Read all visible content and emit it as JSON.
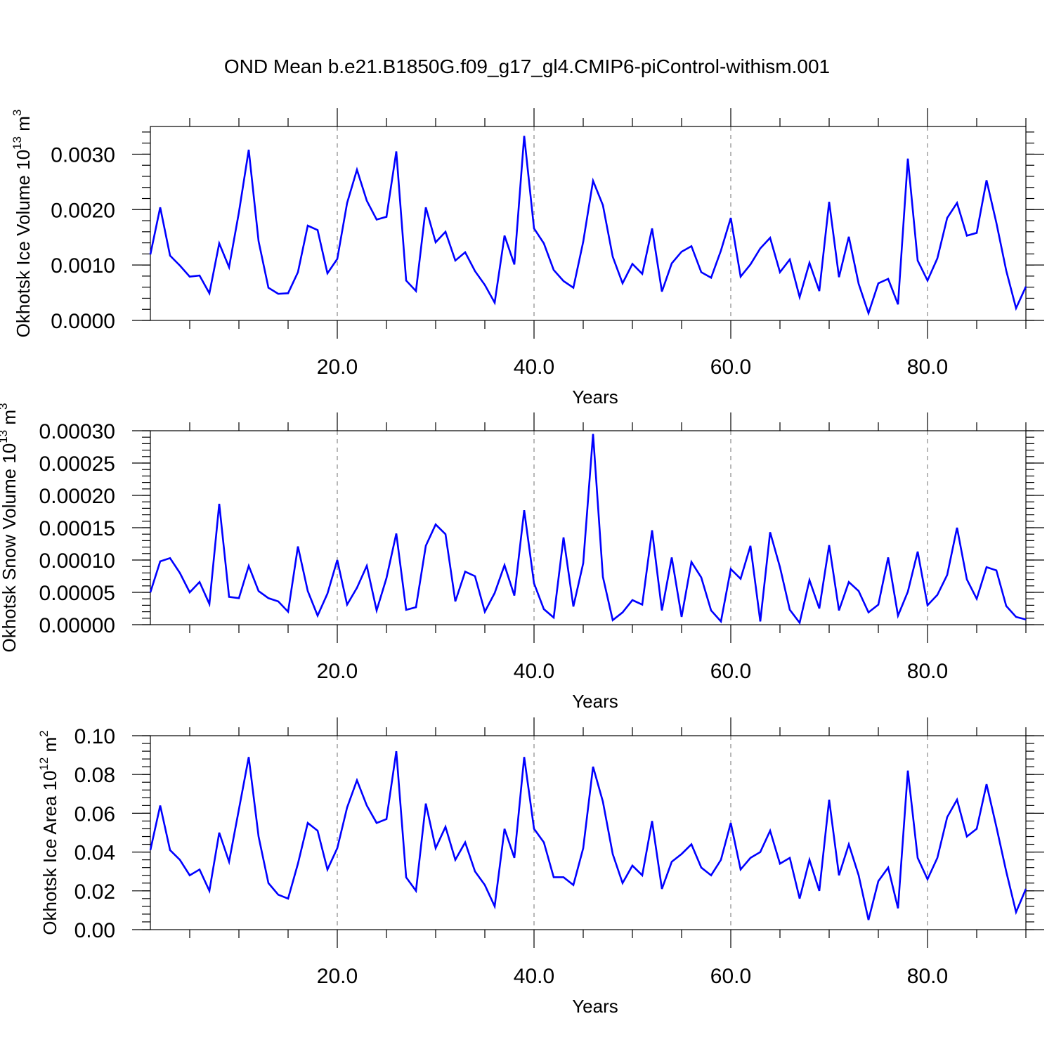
{
  "title": "OND Mean b.e21.B1850G.f09_g17_gl4.CMIP6-piControl-withism.001",
  "chart_data": [
    {
      "type": "line",
      "xlabel": "Years",
      "ylabel": "Okhotsk Ice Volume 10",
      "ylabel_exp": "13",
      "ylabel_unit": " m",
      "ylabel_unit_exp": "3",
      "xlim": [
        1,
        90
      ],
      "ylim": [
        0,
        0.0035
      ],
      "xticks": [
        20,
        40,
        60,
        80
      ],
      "xtick_labels": [
        "20.0",
        "40.0",
        "60.0",
        "80.0"
      ],
      "yticks": [
        0,
        0.001,
        0.002,
        0.003
      ],
      "ytick_labels": [
        "0.0000",
        "0.0010",
        "0.0020",
        "0.0030"
      ],
      "grid": "vertical-dashed",
      "line_color": "#0000ff",
      "x_start": 1,
      "values": [
        0.00119,
        0.00204,
        0.00117,
        0.00099,
        0.00079,
        0.00081,
        0.00049,
        0.00139,
        0.00096,
        0.00195,
        0.00308,
        0.00143,
        0.00059,
        0.00048,
        0.00049,
        0.00087,
        0.00171,
        0.00163,
        0.00085,
        0.00111,
        0.00212,
        0.00272,
        0.00216,
        0.00182,
        0.00187,
        0.00305,
        0.00072,
        0.00053,
        0.00204,
        0.00141,
        0.0016,
        0.00108,
        0.00123,
        0.00089,
        0.00064,
        0.00032,
        0.00153,
        0.00101,
        0.00333,
        0.00166,
        0.00139,
        0.00091,
        0.00071,
        0.00059,
        0.00142,
        0.00252,
        0.00208,
        0.00115,
        0.00067,
        0.00102,
        0.00084,
        0.00166,
        0.00052,
        0.00103,
        0.00124,
        0.00134,
        0.00087,
        0.00077,
        0.00126,
        0.00185,
        0.00079,
        0.00101,
        0.0013,
        0.00149,
        0.00087,
        0.0011,
        0.00042,
        0.00104,
        0.00053,
        0.00214,
        0.00078,
        0.00151,
        0.00066,
        0.00013,
        0.00067,
        0.00075,
        0.00029,
        0.00292,
        0.00108,
        0.00072,
        0.00112,
        0.00185,
        0.00212,
        0.00153,
        0.00158,
        0.00253,
        0.00176,
        0.0009,
        0.00022,
        0.00061
      ]
    },
    {
      "type": "line",
      "xlabel": "Years",
      "ylabel": "Okhotsk Snow Volume 10",
      "ylabel_exp": "13",
      "ylabel_unit": " m",
      "ylabel_unit_exp": "3",
      "xlim": [
        1,
        90
      ],
      "ylim": [
        0,
        0.0003
      ],
      "xticks": [
        20,
        40,
        60,
        80
      ],
      "xtick_labels": [
        "20.0",
        "40.0",
        "60.0",
        "80.0"
      ],
      "yticks": [
        0,
        5e-05,
        0.0001,
        0.00015,
        0.0002,
        0.00025,
        0.0003
      ],
      "ytick_labels": [
        "0.00000",
        "0.00005",
        "0.00010",
        "0.00015",
        "0.00020",
        "0.00025",
        "0.00030"
      ],
      "grid": "vertical-dashed",
      "line_color": "#0000ff",
      "x_start": 1,
      "values": [
        5e-05,
        9.8e-05,
        0.000103,
        8e-05,
        5e-05,
        6.6e-05,
        3.2e-05,
        0.000187,
        4.3e-05,
        4.1e-05,
        9.1e-05,
        5.2e-05,
        4.1e-05,
        3.6e-05,
        2e-05,
        0.000121,
        5.2e-05,
        1.4e-05,
        4.8e-05,
        0.0001,
        3.1e-05,
        5.7e-05,
        9.1e-05,
        2.2e-05,
        7.2e-05,
        0.000141,
        2.3e-05,
        2.7e-05,
        0.000122,
        0.000155,
        0.00014,
        3.6e-05,
        8.2e-05,
        7.5e-05,
        2e-05,
        4.9e-05,
        9.2e-05,
        4.5e-05,
        0.000177,
        6.4e-05,
        2.4e-05,
        1.1e-05,
        0.000135,
        2.8e-05,
        9.5e-05,
        0.000295,
        7.4e-05,
        7e-06,
        1.9e-05,
        3.8e-05,
        3.1e-05,
        0.000146,
        2.2e-05,
        0.000104,
        1.2e-05,
        9.7e-05,
        7.3e-05,
        2.2e-05,
        5e-06,
        8.6e-05,
        7.1e-05,
        0.000122,
        5e-06,
        0.000143,
        8.9e-05,
        2.3e-05,
        3e-06,
        6.9e-05,
        2.5e-05,
        0.000123,
        2.2e-05,
        6.6e-05,
        5.2e-05,
        1.9e-05,
        3.1e-05,
        0.000104,
        1.4e-05,
        5.1e-05,
        0.000113,
        3e-05,
        4.6e-05,
        7.7e-05,
        0.00015,
        7e-05,
        4e-05,
        8.9e-05,
        8.4e-05,
        2.9e-05,
        1.2e-05,
        8e-06
      ]
    },
    {
      "type": "line",
      "xlabel": "Years",
      "ylabel": "Okhotsk Ice Area 10",
      "ylabel_exp": "12",
      "ylabel_unit": " m",
      "ylabel_unit_exp": "2",
      "xlim": [
        1,
        90
      ],
      "ylim": [
        0,
        0.1
      ],
      "xticks": [
        20,
        40,
        60,
        80
      ],
      "xtick_labels": [
        "20.0",
        "40.0",
        "60.0",
        "80.0"
      ],
      "yticks": [
        0,
        0.02,
        0.04,
        0.06,
        0.08,
        0.1
      ],
      "ytick_labels": [
        "0.00",
        "0.02",
        "0.04",
        "0.06",
        "0.08",
        "0.10"
      ],
      "grid": "vertical-dashed",
      "line_color": "#0000ff",
      "x_start": 1,
      "values": [
        0.041,
        0.064,
        0.041,
        0.036,
        0.028,
        0.031,
        0.02,
        0.05,
        0.035,
        0.062,
        0.089,
        0.048,
        0.024,
        0.018,
        0.016,
        0.034,
        0.055,
        0.051,
        0.031,
        0.042,
        0.063,
        0.077,
        0.064,
        0.055,
        0.057,
        0.092,
        0.027,
        0.02,
        0.065,
        0.042,
        0.053,
        0.036,
        0.045,
        0.03,
        0.023,
        0.012,
        0.052,
        0.037,
        0.089,
        0.052,
        0.045,
        0.027,
        0.027,
        0.023,
        0.042,
        0.084,
        0.066,
        0.039,
        0.024,
        0.033,
        0.028,
        0.056,
        0.021,
        0.035,
        0.039,
        0.044,
        0.032,
        0.028,
        0.036,
        0.055,
        0.031,
        0.037,
        0.04,
        0.051,
        0.034,
        0.037,
        0.016,
        0.036,
        0.02,
        0.067,
        0.028,
        0.044,
        0.028,
        0.005,
        0.025,
        0.032,
        0.011,
        0.082,
        0.037,
        0.026,
        0.037,
        0.058,
        0.067,
        0.048,
        0.052,
        0.075,
        0.053,
        0.03,
        0.009,
        0.021
      ]
    }
  ]
}
